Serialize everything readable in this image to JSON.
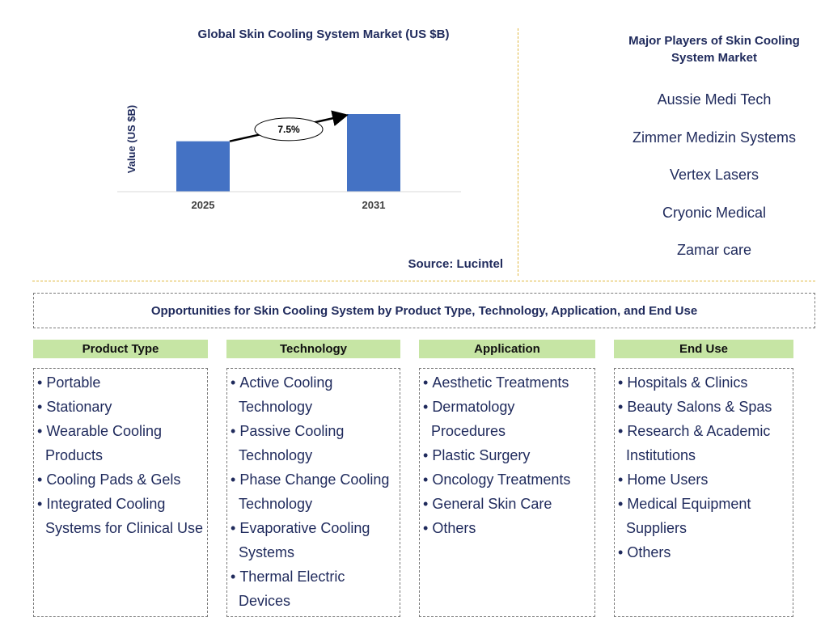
{
  "chart_data": {
    "type": "bar",
    "title": "Global Skin Cooling System Market (US $B)",
    "ylabel": "Value (US $B)",
    "xlabel": "",
    "categories": [
      "2025",
      "2031"
    ],
    "values": [
      1.0,
      1.54
    ],
    "cagr_label": "7.5%",
    "bar_color": "#4472c4",
    "source": "Source: Lucintel"
  },
  "players": {
    "title": "Major Players of Skin Cooling System Market",
    "items": [
      "Aussie Medi Tech",
      "Zimmer Medizin Systems",
      "Vertex Lasers",
      "Cryonic Medical",
      "Zamar care"
    ]
  },
  "opportunities": {
    "title": "Opportunities for Skin Cooling System by Product Type, Technology, Application, and End Use",
    "columns": [
      {
        "header": "Product Type",
        "items": [
          "Portable",
          "Stationary",
          "Wearable Cooling Products",
          "Cooling Pads & Gels",
          "Integrated Cooling Systems for Clinical Use"
        ]
      },
      {
        "header": "Technology",
        "items": [
          "Active Cooling Technology",
          "Passive Cooling Technology",
          "Phase Change Cooling Technology",
          "Evaporative Cooling Systems",
          "Thermal Electric Devices"
        ]
      },
      {
        "header": "Application",
        "items": [
          "Aesthetic Treatments",
          "Dermatology Procedures",
          "Plastic Surgery",
          "Oncology Treatments",
          "General Skin Care",
          "Others"
        ]
      },
      {
        "header": "End Use",
        "items": [
          "Hospitals & Clinics",
          "Beauty Salons & Spas",
          "Research & Academic Institutions",
          "Home Users",
          "Medical Equipment Suppliers",
          "Others"
        ]
      }
    ]
  },
  "colors": {
    "text": "#1f2a5c",
    "header_bg": "#c6e5a4",
    "divider": "#e0b840"
  }
}
